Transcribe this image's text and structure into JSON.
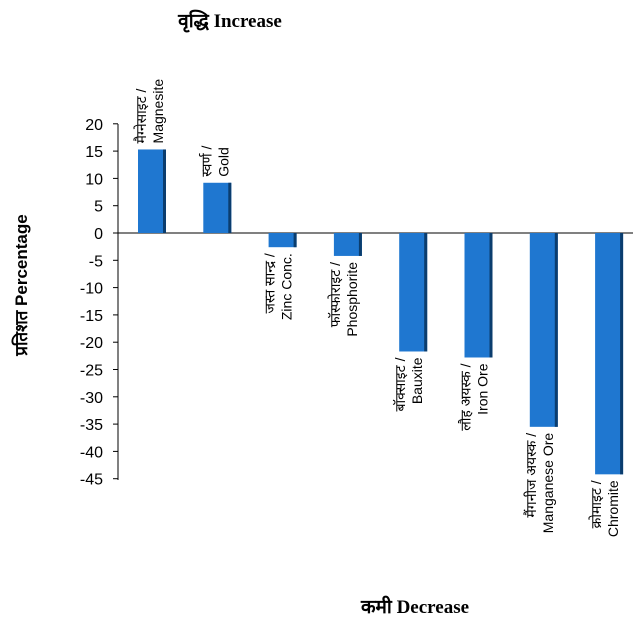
{
  "chart_data": {
    "type": "bar",
    "title": "वृद्धि Increase",
    "xlabel": "कमी Decrease",
    "ylabel": "प्रतिशत Percentage",
    "ylim": [
      -45,
      20
    ],
    "yticks": [
      20,
      15,
      10,
      5,
      0,
      -5,
      -10,
      -15,
      -20,
      -25,
      -30,
      -35,
      -40,
      -45
    ],
    "grid": false,
    "categories": [
      [
        "मैग्नेसाइट /",
        "Magnesite"
      ],
      [
        "स्वर्ण /",
        "Gold"
      ],
      [
        "जस्त सान्द्र /",
        "Zinc Conc."
      ],
      [
        "फॉस्फोराइट /",
        "Phosphorite"
      ],
      [
        "बॉक्साइट /",
        "Bauxite"
      ],
      [
        "लौह अयस्क /",
        "Iron Ore"
      ],
      [
        "मैंगनीज अयस्क /",
        "Manganese Ore"
      ],
      [
        "क्रोमाइट /",
        "Chromite"
      ]
    ],
    "values": [
      15.3,
      9.2,
      -2.6,
      -4.2,
      -21.7,
      -22.8,
      -35.5,
      -44.2
    ],
    "colors": {
      "bar": "#1f77d0",
      "bar_shadow": "#0b3d6e",
      "axis": "#000000"
    }
  }
}
